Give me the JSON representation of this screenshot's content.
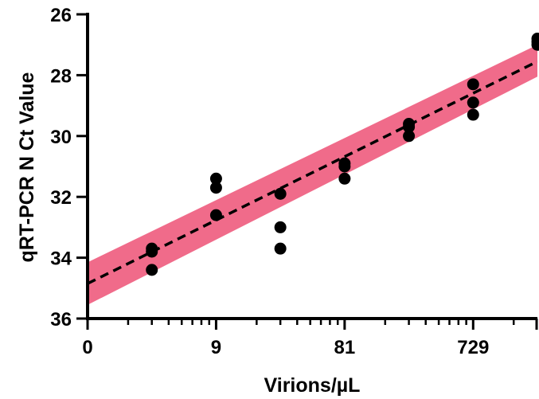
{
  "chart_data": {
    "type": "scatter",
    "title": "",
    "xlabel": "Virions/µL",
    "ylabel": "qRT-PCR N Ct Value",
    "x_scale": "log3",
    "x_ticks": [
      {
        "value": 1,
        "label": "0"
      },
      {
        "value": 9,
        "label": "9"
      },
      {
        "value": 81,
        "label": "81"
      },
      {
        "value": 729,
        "label": "729"
      }
    ],
    "xlim": [
      1,
      2187
    ],
    "y_ticks": [
      26,
      28,
      30,
      32,
      34,
      36
    ],
    "ylim": [
      26,
      36
    ],
    "y_inverted": true,
    "grid": false,
    "legend": "none",
    "points": [
      {
        "x": 3,
        "y": 33.7
      },
      {
        "x": 3,
        "y": 33.8
      },
      {
        "x": 3,
        "y": 34.4
      },
      {
        "x": 9,
        "y": 31.4
      },
      {
        "x": 9,
        "y": 31.7
      },
      {
        "x": 9,
        "y": 32.6
      },
      {
        "x": 27,
        "y": 31.9
      },
      {
        "x": 27,
        "y": 33.0
      },
      {
        "x": 27,
        "y": 33.7
      },
      {
        "x": 81,
        "y": 30.9
      },
      {
        "x": 81,
        "y": 31.0
      },
      {
        "x": 81,
        "y": 31.4
      },
      {
        "x": 243,
        "y": 29.6
      },
      {
        "x": 243,
        "y": 29.7
      },
      {
        "x": 243,
        "y": 30.0
      },
      {
        "x": 729,
        "y": 28.3
      },
      {
        "x": 729,
        "y": 28.9
      },
      {
        "x": 729,
        "y": 29.3
      },
      {
        "x": 2187,
        "y": 26.8
      },
      {
        "x": 2187,
        "y": 26.9
      },
      {
        "x": 2187,
        "y": 27.0
      }
    ],
    "fit_line": {
      "x": [
        1,
        2187
      ],
      "y": [
        34.85,
        27.55
      ]
    },
    "confidence_band": {
      "x": [
        1,
        2187
      ],
      "y_upper": [
        35.55,
        28.05
      ],
      "y_lower": [
        34.15,
        27.0
      ]
    },
    "colors": {
      "band": "#f06b8a",
      "points": "#000000",
      "fit_line": "#000000",
      "axes": "#000000"
    }
  }
}
